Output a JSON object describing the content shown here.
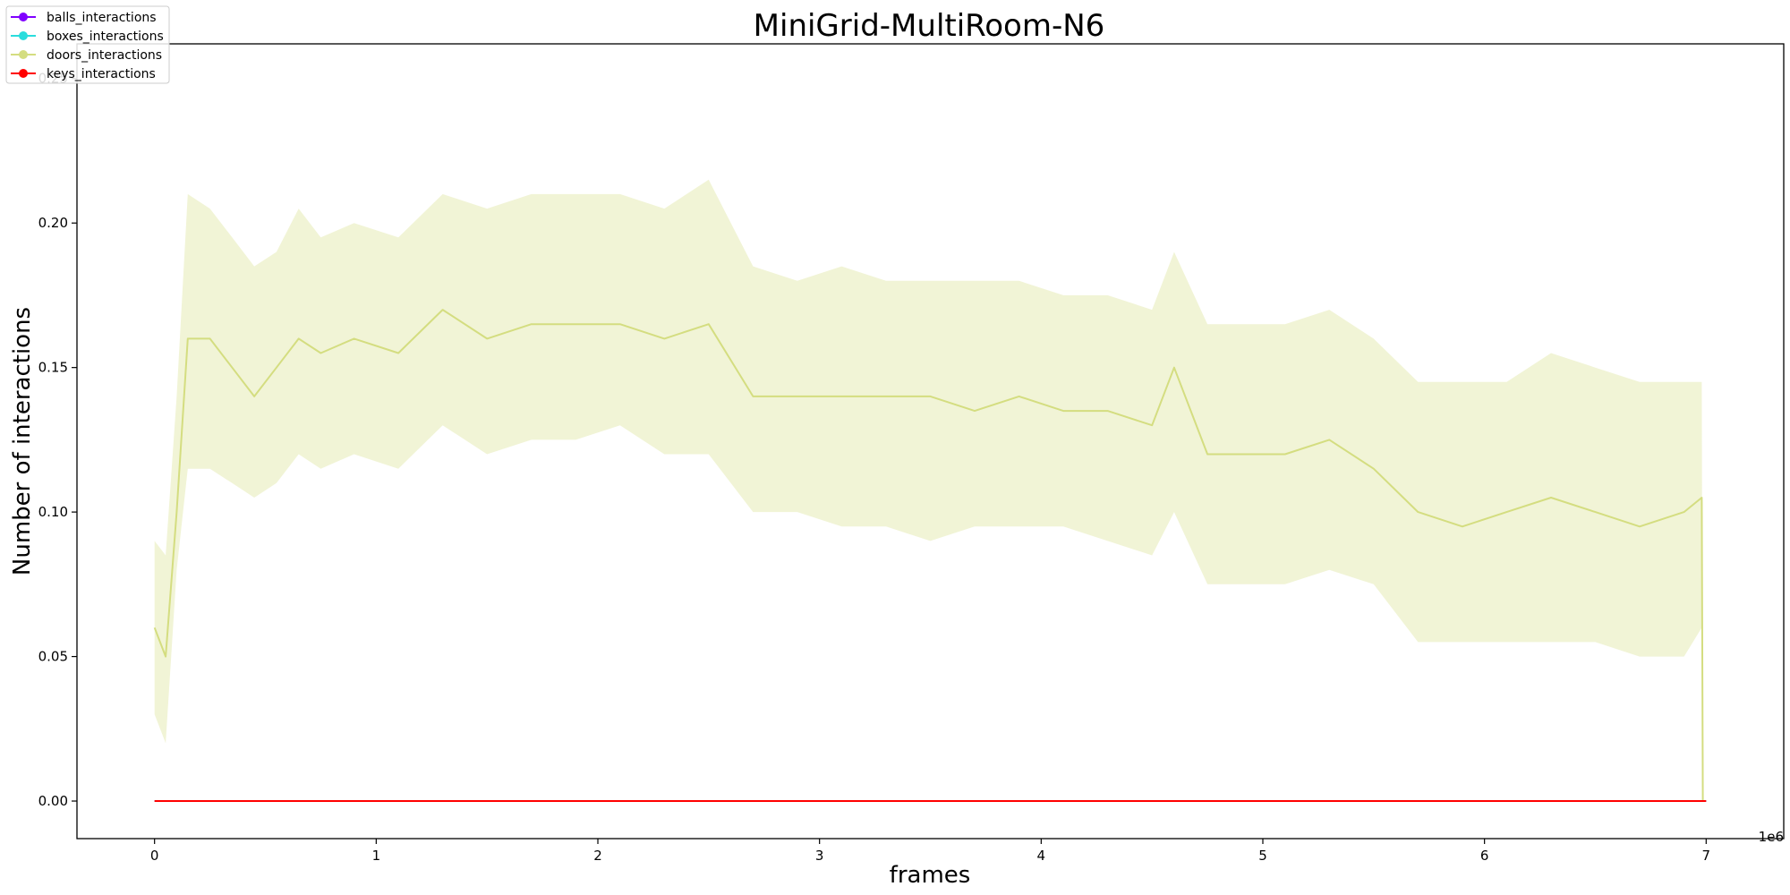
{
  "chart_data": {
    "type": "line",
    "title": "MiniGrid-MultiRoom-N6",
    "xlabel": "frames",
    "ylabel": "Number of interactions",
    "x_offset_text": "1e6",
    "xlim": [
      -0.35,
      7.35
    ],
    "ylim": [
      -0.013,
      0.262
    ],
    "x_ticks": [
      0,
      1,
      2,
      3,
      4,
      5,
      6,
      7
    ],
    "x_tick_labels": [
      "0",
      "1",
      "2",
      "3",
      "4",
      "5",
      "6",
      "7"
    ],
    "y_ticks": [
      0.0,
      0.05,
      0.1,
      0.15,
      0.2,
      0.25
    ],
    "y_tick_labels": [
      "0.00",
      "0.05",
      "0.10",
      "0.15",
      "0.20",
      "0.25"
    ],
    "grid": false,
    "legend_position": "upper-left",
    "series": [
      {
        "name": "balls_interactions",
        "color": "#8000ff",
        "x": [
          0,
          7.0
        ],
        "values": [
          0.0,
          0.0
        ]
      },
      {
        "name": "boxes_interactions",
        "color": "#2adddd",
        "x": [
          0,
          7.0
        ],
        "values": [
          0.0,
          0.0
        ]
      },
      {
        "name": "doors_interactions",
        "color": "#d4dd80",
        "x": [
          0,
          0.05,
          0.1,
          0.15,
          0.25,
          0.35,
          0.45,
          0.55,
          0.65,
          0.75,
          0.9,
          1.1,
          1.3,
          1.5,
          1.7,
          1.9,
          2.1,
          2.3,
          2.5,
          2.7,
          2.9,
          3.1,
          3.3,
          3.5,
          3.7,
          3.9,
          4.1,
          4.3,
          4.5,
          4.6,
          4.75,
          4.9,
          5.1,
          5.3,
          5.5,
          5.7,
          5.9,
          6.1,
          6.3,
          6.5,
          6.7,
          6.9,
          6.98,
          6.985
        ],
        "values": [
          0.06,
          0.05,
          0.1,
          0.16,
          0.16,
          0.15,
          0.14,
          0.15,
          0.16,
          0.155,
          0.16,
          0.155,
          0.17,
          0.16,
          0.165,
          0.165,
          0.165,
          0.16,
          0.165,
          0.14,
          0.14,
          0.14,
          0.14,
          0.14,
          0.135,
          0.14,
          0.135,
          0.135,
          0.13,
          0.15,
          0.12,
          0.12,
          0.12,
          0.125,
          0.115,
          0.1,
          0.095,
          0.1,
          0.105,
          0.1,
          0.095,
          0.1,
          0.105,
          0.0
        ],
        "band_lower": [
          0.03,
          0.02,
          0.08,
          0.115,
          0.115,
          0.11,
          0.105,
          0.11,
          0.12,
          0.115,
          0.12,
          0.115,
          0.13,
          0.12,
          0.125,
          0.125,
          0.13,
          0.12,
          0.12,
          0.1,
          0.1,
          0.095,
          0.095,
          0.09,
          0.095,
          0.095,
          0.095,
          0.09,
          0.085,
          0.1,
          0.075,
          0.075,
          0.075,
          0.08,
          0.075,
          0.055,
          0.055,
          0.055,
          0.055,
          0.055,
          0.05,
          0.05,
          0.06,
          0.0
        ],
        "band_upper": [
          0.09,
          0.085,
          0.14,
          0.21,
          0.205,
          0.195,
          0.185,
          0.19,
          0.205,
          0.195,
          0.2,
          0.195,
          0.21,
          0.205,
          0.21,
          0.21,
          0.21,
          0.205,
          0.215,
          0.185,
          0.18,
          0.185,
          0.18,
          0.18,
          0.18,
          0.18,
          0.175,
          0.175,
          0.17,
          0.19,
          0.165,
          0.165,
          0.165,
          0.17,
          0.16,
          0.145,
          0.145,
          0.145,
          0.155,
          0.15,
          0.145,
          0.145,
          0.145,
          0.0
        ]
      },
      {
        "name": "keys_interactions",
        "color": "#ff0000",
        "x": [
          0,
          7.0
        ],
        "values": [
          0.0,
          0.0
        ]
      }
    ]
  }
}
